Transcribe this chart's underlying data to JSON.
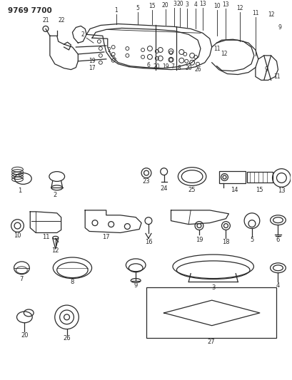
{
  "title": "9769 7700",
  "bg_color": "#ffffff",
  "line_color": "#2a2a2a",
  "fig_width": 4.1,
  "fig_height": 5.33,
  "dpi": 100
}
